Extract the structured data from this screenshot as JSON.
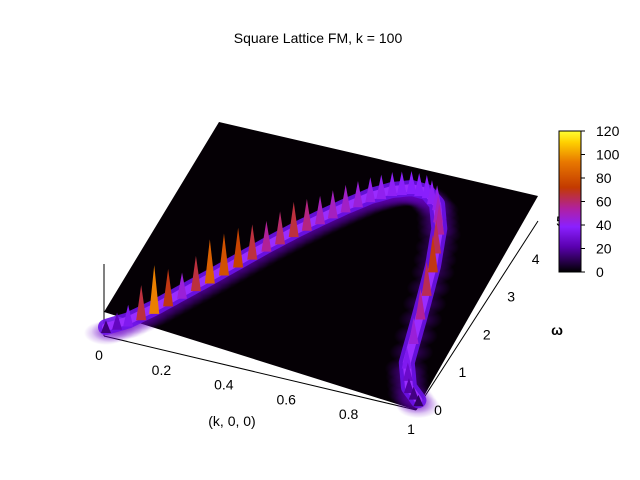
{
  "chart_data": {
    "type": "heatmap",
    "render": "3d-surface",
    "title": "Square Lattice FM, k = 100",
    "xlabel": "(k, 0, 0)",
    "ylabel": "ω",
    "xlim": [
      0,
      1
    ],
    "ylim": [
      0,
      5.2
    ],
    "x_ticks": [
      "0",
      "0.2",
      "0.4",
      "0.6",
      "0.8",
      "1"
    ],
    "y_ticks": [
      "0",
      "1",
      "2",
      "3",
      "4",
      "5"
    ],
    "colorbar": {
      "range": [
        0,
        120
      ],
      "ticks": [
        "0",
        "20",
        "40",
        "60",
        "80",
        "100",
        "120"
      ],
      "stops": [
        "#000000",
        "#3a007a",
        "#8a0fff",
        "#a026d0",
        "#c53200",
        "#e86400",
        "#ffd800",
        "#ffff40"
      ]
    },
    "dispersion_ridge": {
      "k": [
        0.0,
        0.05,
        0.1,
        0.15,
        0.2,
        0.25,
        0.3,
        0.35,
        0.4,
        0.45,
        0.5,
        0.55,
        0.6,
        0.65,
        0.7,
        0.75,
        0.8,
        0.85,
        0.9,
        0.95,
        1.0
      ],
      "omega": [
        0.08,
        0.35,
        0.78,
        1.28,
        1.78,
        2.3,
        2.82,
        3.3,
        3.74,
        4.15,
        4.52,
        4.78,
        4.93,
        4.92,
        4.7,
        4.15,
        3.25,
        2.1,
        0.9,
        0.35,
        0.1
      ],
      "peak_intensity": [
        15,
        35,
        95,
        45,
        85,
        75,
        55,
        65,
        50,
        48,
        42,
        40,
        38,
        38,
        42,
        55,
        70,
        55,
        35,
        20,
        12
      ]
    }
  }
}
